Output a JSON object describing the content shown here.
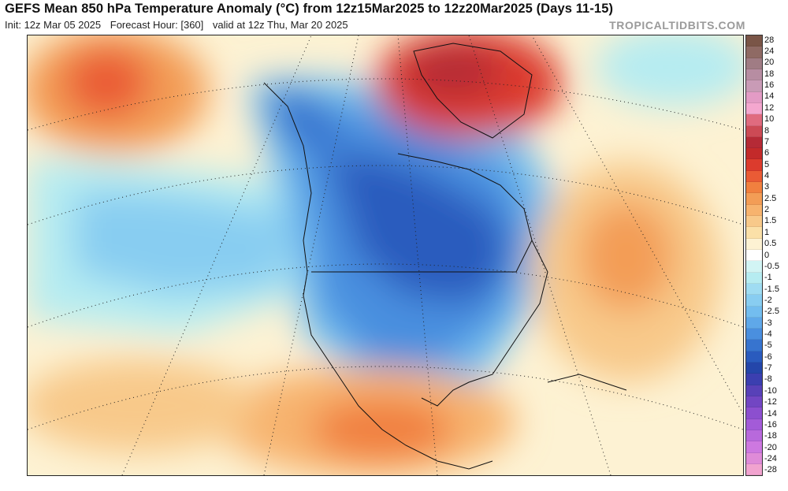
{
  "header": {
    "title": "GEFS Mean 850 hPa Temperature Anomaly (°C) from 12z15Mar2025 to 12z20Mar2025 (Days 11-15)",
    "init": "Init: 12z Mar 05 2025",
    "forecast_hour": "Forecast Hour: [360]",
    "valid": "valid at 12z Thu, Mar 20 2025",
    "watermark": "TROPICALTIDBITS.COM"
  },
  "colorbar": {
    "labels": [
      "28",
      "24",
      "20",
      "18",
      "16",
      "14",
      "12",
      "10",
      "8",
      "7",
      "6",
      "5",
      "4",
      "3",
      "2.5",
      "2",
      "1.5",
      "1",
      "0.5",
      "0",
      "-0.5",
      "-1",
      "-1.5",
      "-2",
      "-2.5",
      "-3",
      "-4",
      "-5",
      "-6",
      "-7",
      "-8",
      "-10",
      "-12",
      "-14",
      "-16",
      "-18",
      "-20",
      "-24",
      "-28"
    ],
    "colors": [
      "#7a5547",
      "#8f6a64",
      "#a07c84",
      "#b78da2",
      "#c99bb6",
      "#e39bc5",
      "#f4a7cf",
      "#e06b7f",
      "#cc4a55",
      "#b52a36",
      "#c32a2a",
      "#dc3b2d",
      "#ea5b35",
      "#f1803f",
      "#f39d56",
      "#f7b36e",
      "#f8c98a",
      "#fbe0a8",
      "#fdf2d3",
      "#ffffff",
      "#d2f4f4",
      "#b6ecf1",
      "#9fdcf2",
      "#88cdf1",
      "#73bdef",
      "#5fa8e9",
      "#4a8fdf",
      "#3774cf",
      "#2a5bbe",
      "#2446aa",
      "#3b3fb0",
      "#5841b8",
      "#7246c3",
      "#8c4fcf",
      "#a35bd8",
      "#b869dc",
      "#cd78e0",
      "#df8bd8",
      "#f1a3cf"
    ]
  }
}
